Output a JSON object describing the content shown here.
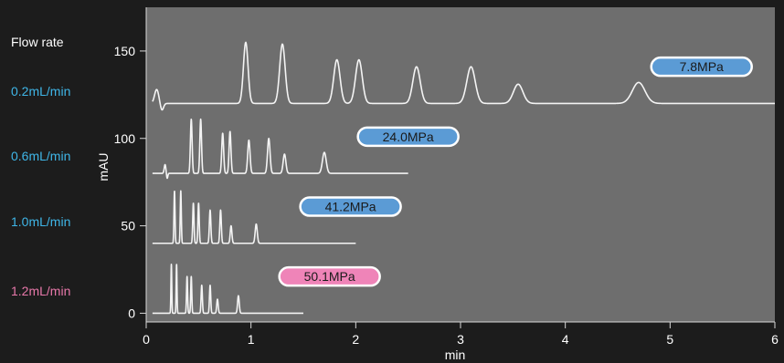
{
  "chart_data": {
    "type": "line",
    "xlabel": "min",
    "ylabel": "mAU",
    "xlim": [
      0,
      6
    ],
    "ylim": [
      -5,
      175
    ],
    "x_ticks": [
      0,
      1,
      2,
      3,
      4,
      5,
      6
    ],
    "y_ticks": [
      0,
      50,
      100,
      150
    ],
    "legend_header": "Flow rate",
    "grid": false,
    "series": [
      {
        "name": "0.2mL/min",
        "label_color": "#3fb6e8",
        "pressure": "7.8MPa",
        "badge_color": "#5b9bd5",
        "badge_x": 5.3,
        "baseline": 120,
        "end_x": 6.0,
        "disturbance": [
          {
            "x": 0.1,
            "height": 8,
            "width": 0.02
          },
          {
            "x": 0.15,
            "height": -4,
            "width": 0.015
          }
        ],
        "peaks": [
          {
            "x": 0.95,
            "height": 35,
            "width": 0.022
          },
          {
            "x": 1.3,
            "height": 34,
            "width": 0.026
          },
          {
            "x": 1.82,
            "height": 25,
            "width": 0.03
          },
          {
            "x": 2.03,
            "height": 25,
            "width": 0.032
          },
          {
            "x": 2.58,
            "height": 21,
            "width": 0.035
          },
          {
            "x": 3.1,
            "height": 21,
            "width": 0.04
          },
          {
            "x": 3.55,
            "height": 11,
            "width": 0.045
          },
          {
            "x": 4.7,
            "height": 12,
            "width": 0.06
          }
        ]
      },
      {
        "name": "0.6mL/min",
        "label_color": "#3fb6e8",
        "pressure": "24.0MPa",
        "badge_color": "#5b9bd5",
        "badge_x": 2.5,
        "baseline": 80,
        "end_x": 2.5,
        "disturbance": [
          {
            "x": 0.18,
            "height": 5,
            "width": 0.008
          },
          {
            "x": 0.2,
            "height": -3,
            "width": 0.006
          }
        ],
        "peaks": [
          {
            "x": 0.43,
            "height": 31,
            "width": 0.008
          },
          {
            "x": 0.52,
            "height": 31,
            "width": 0.008
          },
          {
            "x": 0.73,
            "height": 23,
            "width": 0.009
          },
          {
            "x": 0.8,
            "height": 24,
            "width": 0.009
          },
          {
            "x": 0.98,
            "height": 19,
            "width": 0.011
          },
          {
            "x": 1.17,
            "height": 20,
            "width": 0.012
          },
          {
            "x": 1.32,
            "height": 11,
            "width": 0.013
          },
          {
            "x": 1.7,
            "height": 12,
            "width": 0.018
          }
        ]
      },
      {
        "name": "1.0mL/min",
        "label_color": "#3fb6e8",
        "pressure": "41.2MPa",
        "badge_color": "#5b9bd5",
        "badge_x": 1.95,
        "baseline": 40,
        "end_x": 2.0,
        "disturbance": [],
        "peaks": [
          {
            "x": 0.27,
            "height": 30,
            "width": 0.005
          },
          {
            "x": 0.33,
            "height": 30,
            "width": 0.005
          },
          {
            "x": 0.45,
            "height": 23,
            "width": 0.006
          },
          {
            "x": 0.5,
            "height": 23,
            "width": 0.006
          },
          {
            "x": 0.61,
            "height": 19,
            "width": 0.007
          },
          {
            "x": 0.71,
            "height": 19,
            "width": 0.007
          },
          {
            "x": 0.81,
            "height": 10,
            "width": 0.008
          },
          {
            "x": 1.05,
            "height": 11,
            "width": 0.01
          }
        ]
      },
      {
        "name": "1.2mL/min",
        "label_color": "#e878aa",
        "pressure": "50.1MPa",
        "badge_color": "#ef84b8",
        "badge_x": 1.75,
        "baseline": 0,
        "end_x": 1.5,
        "disturbance": [],
        "peaks": [
          {
            "x": 0.24,
            "height": 28,
            "width": 0.004
          },
          {
            "x": 0.29,
            "height": 28,
            "width": 0.004
          },
          {
            "x": 0.39,
            "height": 21,
            "width": 0.005
          },
          {
            "x": 0.43,
            "height": 21,
            "width": 0.005
          },
          {
            "x": 0.53,
            "height": 16,
            "width": 0.006
          },
          {
            "x": 0.61,
            "height": 16,
            "width": 0.006
          },
          {
            "x": 0.68,
            "height": 8,
            "width": 0.007
          },
          {
            "x": 0.88,
            "height": 10,
            "width": 0.008
          }
        ]
      }
    ]
  }
}
